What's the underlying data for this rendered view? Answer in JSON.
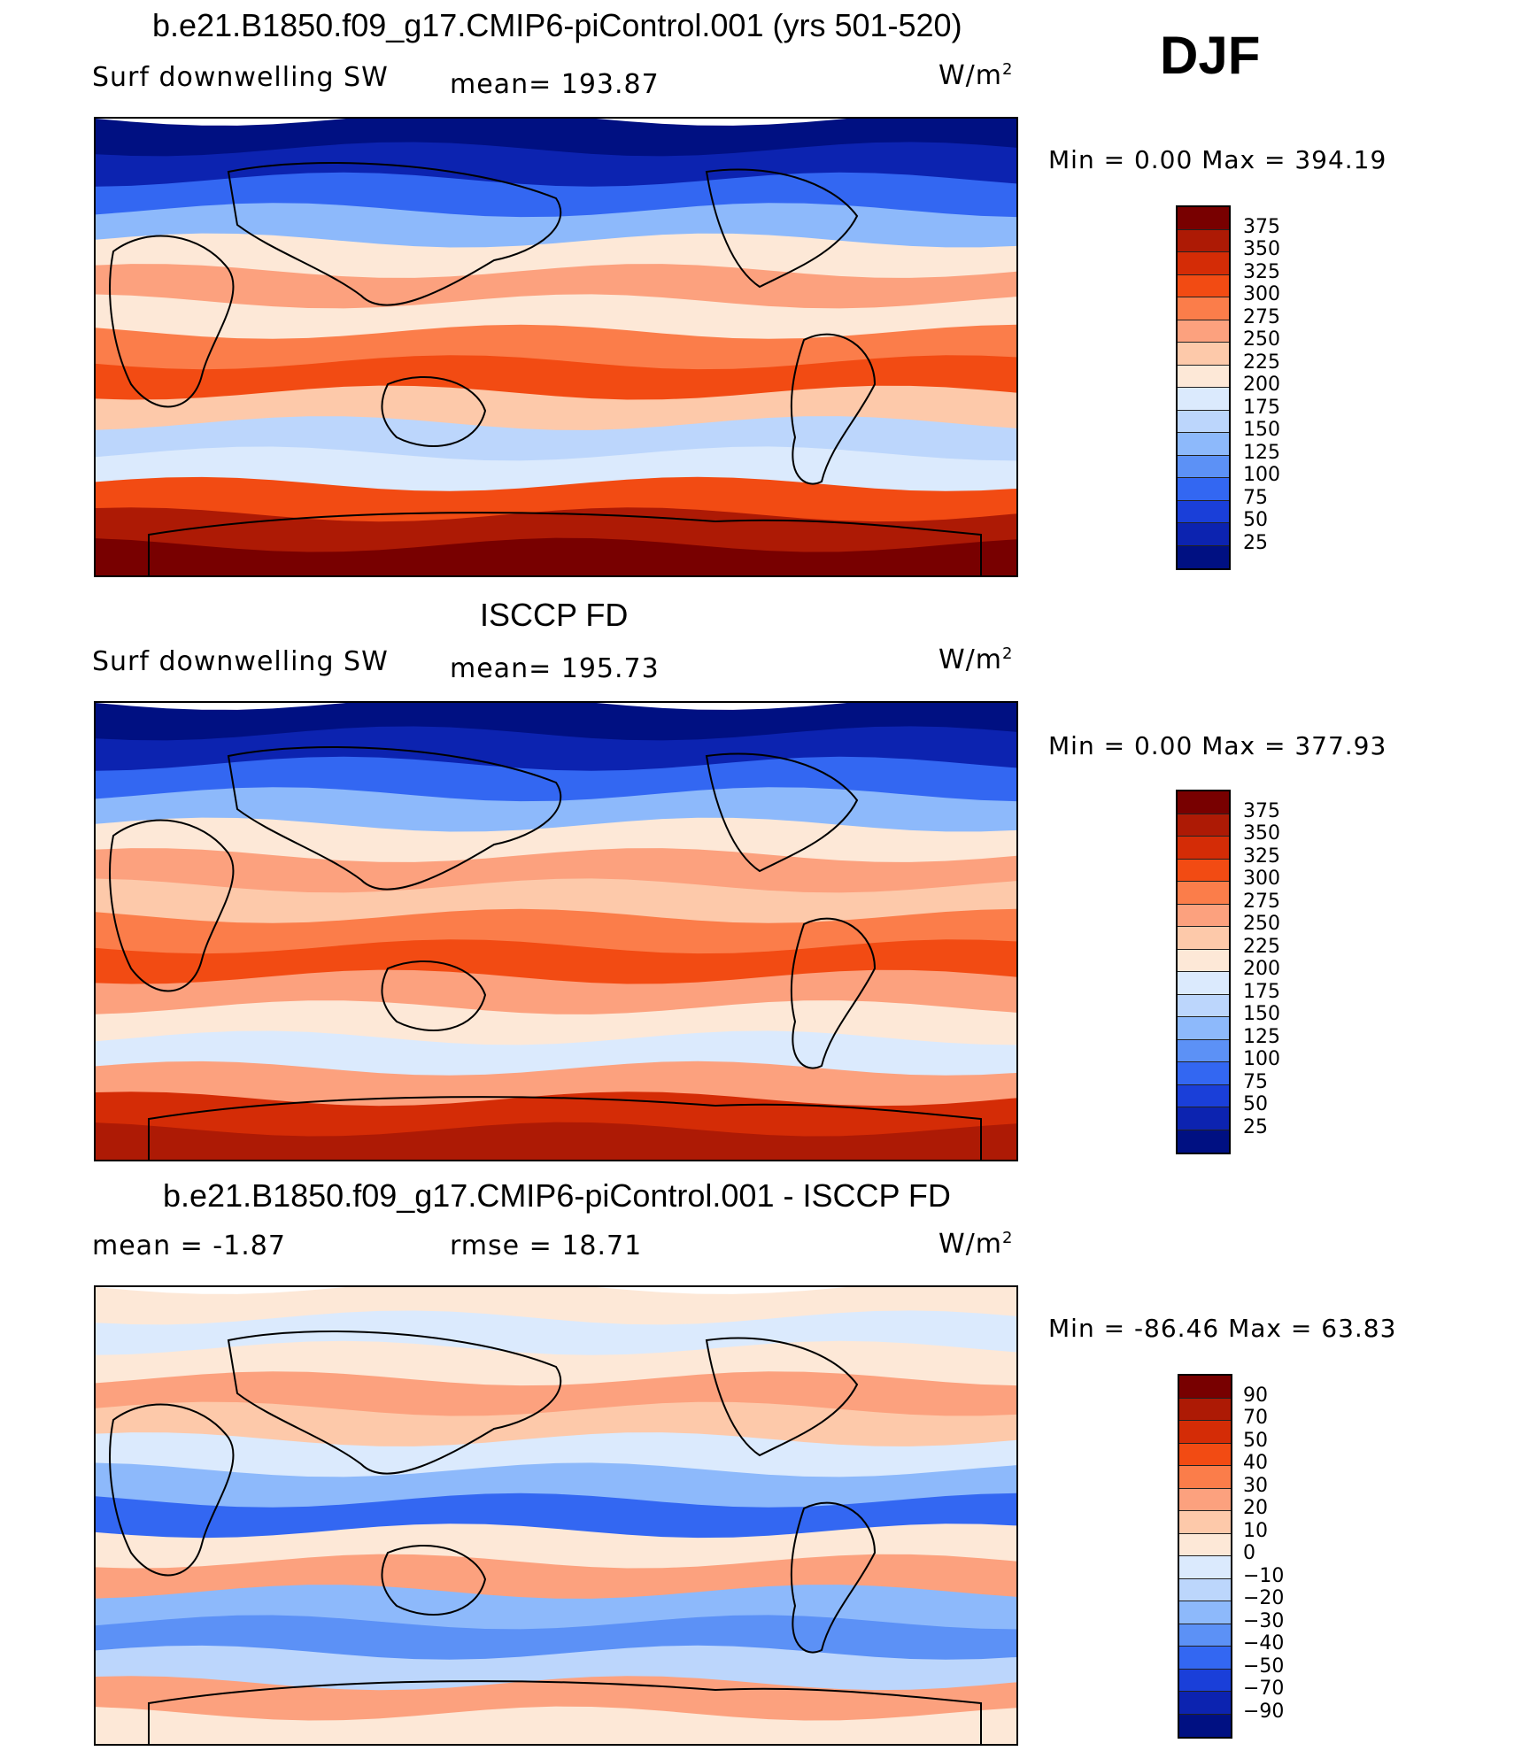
{
  "season": "DJF",
  "panels": [
    {
      "title": "b.e21.B1850.f09_g17.CMIP6-piControl.001 (yrs 501-520)",
      "left_label": "Surf downwelling SW",
      "mid_label": "mean= 193.87",
      "unit": "W/m",
      "unit_sup": "2",
      "minmax": "Min =    0.00 Max = 394.19",
      "colorbar": {
        "labels": [
          "375",
          "350",
          "325",
          "300",
          "275",
          "250",
          "225",
          "200",
          "175",
          "150",
          "125",
          "100",
          "75",
          "50",
          "25"
        ],
        "colors": [
          "#780000",
          "#ad1a05",
          "#d42c06",
          "#f24b13",
          "#fb7d4a",
          "#fca17e",
          "#fdc9aa",
          "#fde8d7",
          "#dbeafd",
          "#bcd6fc",
          "#8db9fb",
          "#5c91f6",
          "#3367f2",
          "#1a3fd9",
          "#0c23b0",
          "#001082"
        ]
      }
    },
    {
      "title": "ISCCP FD",
      "left_label": "Surf downwelling SW",
      "mid_label": "mean= 195.73",
      "unit": "W/m",
      "unit_sup": "2",
      "minmax": "Min =    0.00 Max = 377.93",
      "colorbar": {
        "labels": [
          "375",
          "350",
          "325",
          "300",
          "275",
          "250",
          "225",
          "200",
          "175",
          "150",
          "125",
          "100",
          "75",
          "50",
          "25"
        ],
        "colors": [
          "#780000",
          "#ad1a05",
          "#d42c06",
          "#f24b13",
          "#fb7d4a",
          "#fca17e",
          "#fdc9aa",
          "#fde8d7",
          "#dbeafd",
          "#bcd6fc",
          "#8db9fb",
          "#5c91f6",
          "#3367f2",
          "#1a3fd9",
          "#0c23b0",
          "#001082"
        ]
      }
    },
    {
      "title": "b.e21.B1850.f09_g17.CMIP6-piControl.001 - ISCCP FD",
      "left_label": "mean =   -1.87",
      "mid_label": "rmse =   18.71",
      "unit": "W/m",
      "unit_sup": "2",
      "minmax": "Min = -86.46 Max =   63.83",
      "colorbar": {
        "labels": [
          "90",
          "70",
          "50",
          "40",
          "30",
          "20",
          "10",
          "0",
          "-10",
          "-20",
          "-30",
          "-40",
          "-50",
          "-70",
          "-90"
        ],
        "colors": [
          "#780000",
          "#ad1a05",
          "#d42c06",
          "#f24b13",
          "#fb7d4a",
          "#fca17e",
          "#fdc9aa",
          "#fde8d7",
          "#dbeafd",
          "#bcd6fc",
          "#8db9fb",
          "#5c91f6",
          "#3367f2",
          "#1a3fd9",
          "#0c23b0",
          "#001082"
        ]
      }
    }
  ],
  "map_fields": [
    {
      "bands": [
        "#001082",
        "#0c23b0",
        "#3367f2",
        "#8db9fb",
        "#fde8d7",
        "#fca17e",
        "#fde8d7",
        "#fb7d4a",
        "#f24b13",
        "#fdc9aa",
        "#bcd6fc",
        "#dbeafd",
        "#f24b13",
        "#ad1a05",
        "#780000"
      ]
    },
    {
      "bands": [
        "#001082",
        "#0c23b0",
        "#3367f2",
        "#8db9fb",
        "#fde8d7",
        "#fca17e",
        "#fdc9aa",
        "#fb7d4a",
        "#f24b13",
        "#fca17e",
        "#fde8d7",
        "#dbeafd",
        "#fca17e",
        "#d42c06",
        "#ad1a05"
      ]
    },
    {
      "bands": [
        "#fde8d7",
        "#dbeafd",
        "#fde8d7",
        "#fca17e",
        "#fdc9aa",
        "#dbeafd",
        "#8db9fb",
        "#3367f2",
        "#fde8d7",
        "#fca17e",
        "#8db9fb",
        "#5c91f6",
        "#bcd6fc",
        "#fca17e",
        "#fde8d7"
      ]
    }
  ]
}
